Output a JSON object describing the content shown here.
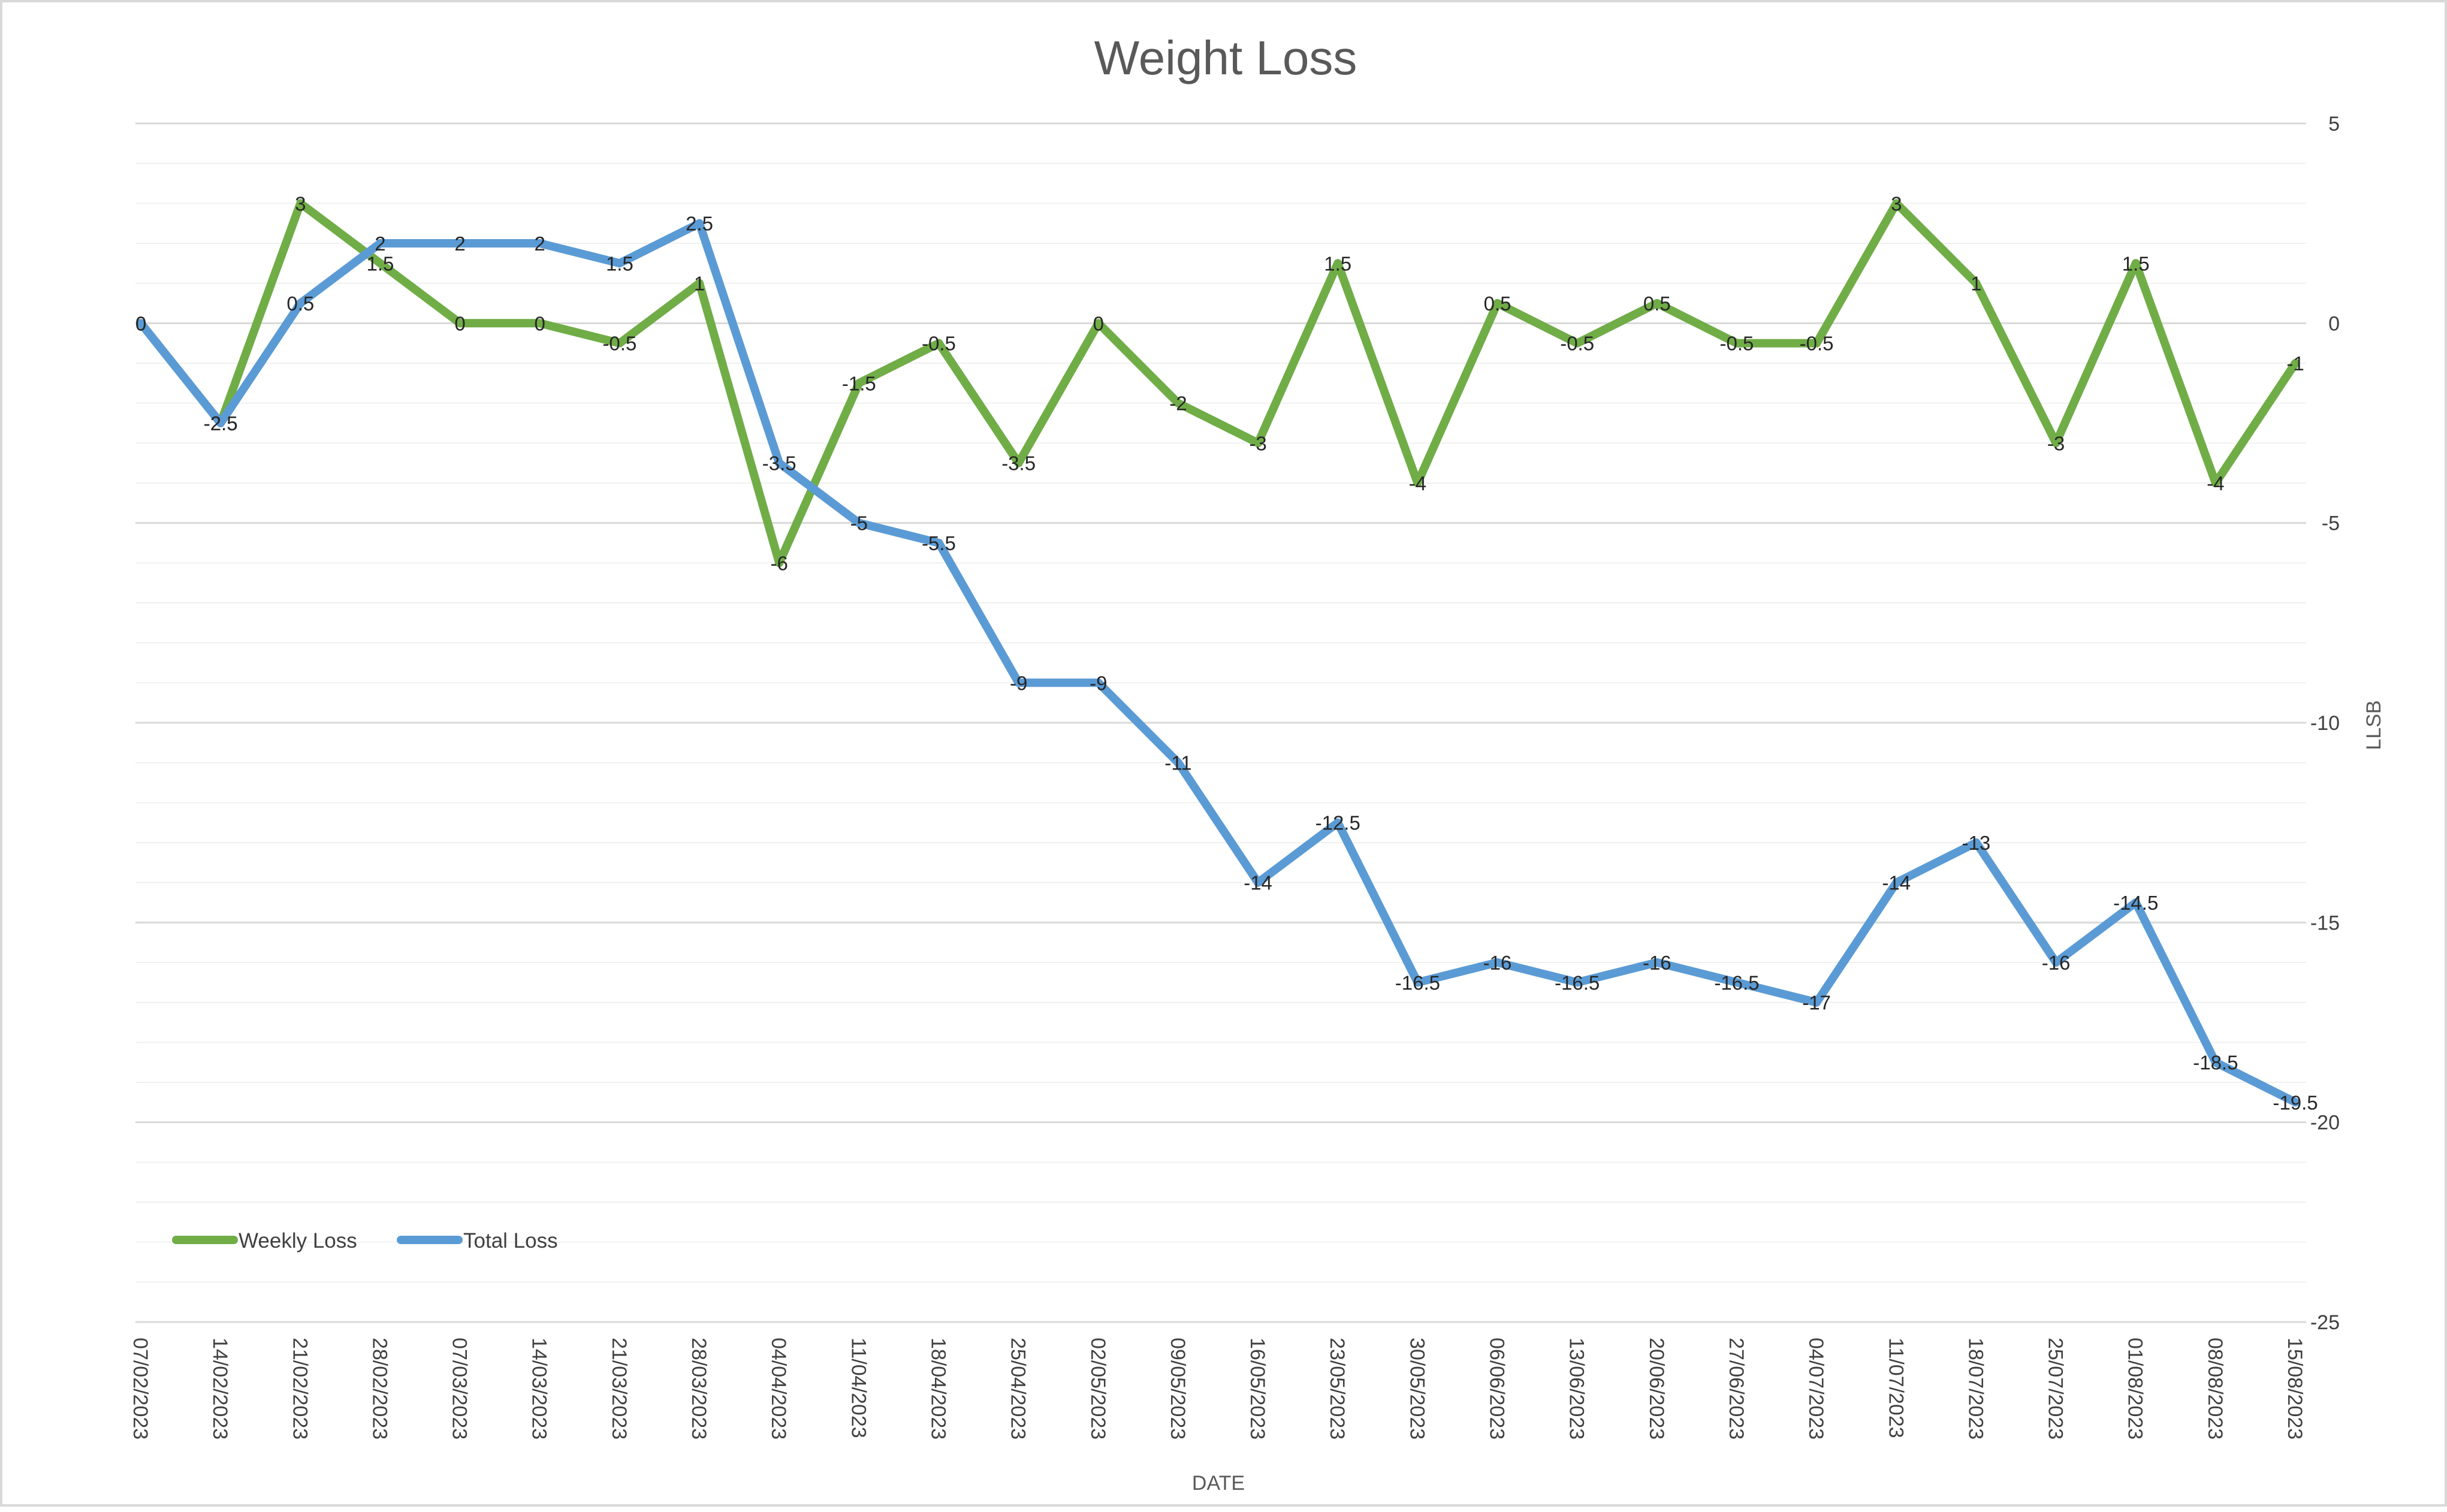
{
  "chart_data": {
    "type": "line",
    "title": "Weight Loss",
    "xlabel": "DATE",
    "ylabel": "LLSB",
    "y_axis_position": "right",
    "ylim": [
      -25,
      5
    ],
    "y_major_step": 5,
    "y_minor_step": 1,
    "grid": true,
    "legend_position": "bottom-left",
    "categories": [
      "07/02/2023",
      "14/02/2023",
      "21/02/2023",
      "28/02/2023",
      "07/03/2023",
      "14/03/2023",
      "21/03/2023",
      "28/03/2023",
      "04/04/2023",
      "11/04/2023",
      "18/04/2023",
      "25/04/2023",
      "02/05/2023",
      "09/05/2023",
      "16/05/2023",
      "23/05/2023",
      "30/05/2023",
      "06/06/2023",
      "13/06/2023",
      "20/06/2023",
      "27/06/2023",
      "04/07/2023",
      "11/07/2023",
      "18/07/2023",
      "25/07/2023",
      "01/08/2023",
      "08/08/2023",
      "15/08/2023"
    ],
    "series": [
      {
        "name": "Weekly Loss",
        "color": "#70ad47",
        "values": [
          0,
          -2.5,
          3,
          1.5,
          0,
          0,
          -0.5,
          1,
          -6,
          -1.5,
          -0.5,
          -3.5,
          0,
          -2,
          -3,
          1.5,
          -4,
          0.5,
          -0.5,
          0.5,
          -0.5,
          -0.5,
          3,
          1,
          -3,
          1.5,
          -4,
          -1
        ]
      },
      {
        "name": "Total Loss",
        "color": "#5b9bd5",
        "values": [
          0,
          -2.5,
          0.5,
          2,
          2,
          2,
          1.5,
          2.5,
          -3.5,
          -5,
          -5.5,
          -9,
          -9,
          -11,
          -14,
          -12.5,
          -16.5,
          -16,
          -16.5,
          -16,
          -16.5,
          -17,
          -14,
          -13,
          -16,
          -14.5,
          -18.5,
          -19.5
        ]
      }
    ]
  }
}
